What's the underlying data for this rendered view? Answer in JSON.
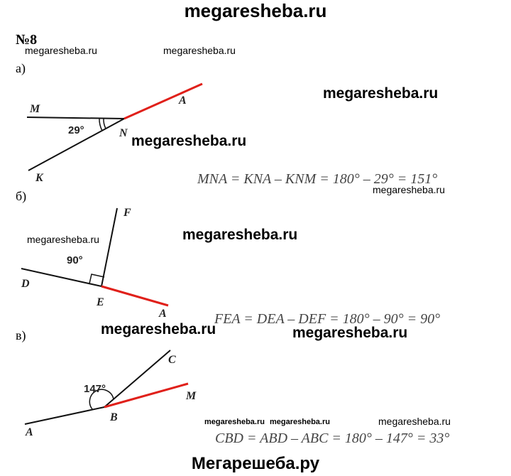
{
  "header": {
    "title": "megaresheba.ru"
  },
  "problem": {
    "number": "№8"
  },
  "watermarks": [
    "megaresheba.ru",
    "megaresheba.ru",
    "megaresheba.ru",
    "megaresheba.ru",
    "megaresheba.ru",
    "megaresheba.ru",
    "megaresheba.ru",
    "megaresheba.ru",
    "megaresheba.ru",
    "megaresheba.ru",
    "megaresheba.ru",
    "megaresheba.ru"
  ],
  "parts": [
    {
      "label": "а)",
      "labels": [
        "M",
        "A",
        "29°",
        "N",
        "K"
      ],
      "equation": "MNA = KNA – KNM = 180° – 29° = 151°"
    },
    {
      "label": "б)",
      "labels": [
        "F",
        "90°",
        "D",
        "E",
        "A"
      ],
      "equation": "FEA = DEA – DEF = 180° – 90° = 90°"
    },
    {
      "label": "в)",
      "labels": [
        "C",
        "147°",
        "M",
        "B",
        "A"
      ],
      "equation": "CBD = ABD – ABC = 180° – 147° = 33°"
    }
  ],
  "footer": {
    "title": "Мегарешеба.ру"
  }
}
